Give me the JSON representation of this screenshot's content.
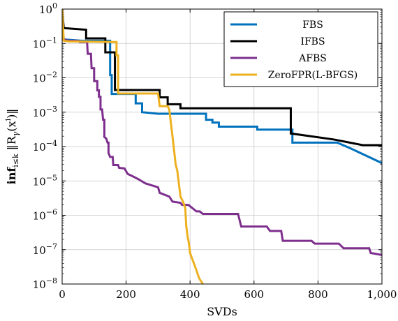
{
  "chart_data": {
    "type": "line",
    "xlabel": "SVDs",
    "ylabel": "inf_{i≤k} ‖R_γ(x^i)‖",
    "ylabel_parts": {
      "pre": "inf",
      "sub": "i≤k",
      "mid": " ‖R",
      "gamma": "γ",
      "open": "(x",
      "sup": "i",
      "close": ")‖"
    },
    "xlim": [
      0,
      1000
    ],
    "ylim": [
      1e-08,
      1
    ],
    "yscale": "log",
    "grid": true,
    "legend_position": "top-right",
    "x_ticks": [
      {
        "value": 0,
        "label": "0"
      },
      {
        "value": 200,
        "label": "200"
      },
      {
        "value": 400,
        "label": "400"
      },
      {
        "value": 600,
        "label": "600"
      },
      {
        "value": 800,
        "label": "800"
      },
      {
        "value": 1000,
        "label": "1,000"
      }
    ],
    "y_ticks": [
      {
        "value": 1,
        "base": "10",
        "exp": "0"
      },
      {
        "value": 0.1,
        "base": "10",
        "exp": "−1"
      },
      {
        "value": 0.01,
        "base": "10",
        "exp": "−2"
      },
      {
        "value": 0.001,
        "base": "10",
        "exp": "−3"
      },
      {
        "value": 0.0001,
        "base": "10",
        "exp": "−4"
      },
      {
        "value": 1e-05,
        "base": "10",
        "exp": "−5"
      },
      {
        "value": 1e-06,
        "base": "10",
        "exp": "−6"
      },
      {
        "value": 1e-07,
        "base": "10",
        "exp": "−7"
      },
      {
        "value": 1e-08,
        "base": "10",
        "exp": "−8"
      }
    ],
    "series": [
      {
        "name": "FBS",
        "color": "#0072bd",
        "points": [
          [
            0,
            1
          ],
          [
            3,
            0.15
          ],
          [
            8,
            0.13
          ],
          [
            60,
            0.12
          ],
          [
            150,
            0.12
          ],
          [
            150,
            0.012
          ],
          [
            155,
            0.012
          ],
          [
            155,
            0.0034
          ],
          [
            195,
            0.0034
          ],
          [
            195,
            0.0034
          ],
          [
            230,
            0.0034
          ],
          [
            230,
            0.0018
          ],
          [
            250,
            0.0018
          ],
          [
            250,
            0.001
          ],
          [
            300,
            0.0009
          ],
          [
            420,
            0.0009
          ],
          [
            420,
            0.0009
          ],
          [
            450,
            0.0009
          ],
          [
            450,
            0.0006
          ],
          [
            470,
            0.0006
          ],
          [
            470,
            0.0005
          ],
          [
            490,
            0.0005
          ],
          [
            490,
            0.00038
          ],
          [
            560,
            0.00038
          ],
          [
            560,
            0.00038
          ],
          [
            610,
            0.00038
          ],
          [
            610,
            0.00031
          ],
          [
            720,
            0.00031
          ],
          [
            720,
            0.00013
          ],
          [
            860,
            0.00013
          ],
          [
            900,
            9e-05
          ],
          [
            1000,
            3.3e-05
          ]
        ]
      },
      {
        "name": "IFBS",
        "color": "#000000",
        "points": [
          [
            0,
            1
          ],
          [
            5,
            0.28
          ],
          [
            75,
            0.25
          ],
          [
            75,
            0.14
          ],
          [
            135,
            0.14
          ],
          [
            135,
            0.055
          ],
          [
            165,
            0.055
          ],
          [
            165,
            0.0044
          ],
          [
            305,
            0.0044
          ],
          [
            305,
            0.0027
          ],
          [
            330,
            0.0027
          ],
          [
            330,
            0.0017
          ],
          [
            370,
            0.0017
          ],
          [
            370,
            0.0013
          ],
          [
            700,
            0.0013
          ],
          [
            700,
            0.0013
          ],
          [
            715,
            0.0013
          ],
          [
            715,
            0.00024
          ],
          [
            760,
            0.00021
          ],
          [
            850,
            0.00016
          ],
          [
            940,
            0.00011
          ],
          [
            1000,
            0.00011
          ]
        ]
      },
      {
        "name": "AFBS",
        "color": "#7e2f8e",
        "points": [
          [
            0,
            1
          ],
          [
            4,
            0.13
          ],
          [
            20,
            0.12
          ],
          [
            50,
            0.12
          ],
          [
            55,
            0.11
          ],
          [
            78,
            0.11
          ],
          [
            80,
            0.05
          ],
          [
            90,
            0.05
          ],
          [
            92,
            0.019
          ],
          [
            100,
            0.019
          ],
          [
            100,
            0.008
          ],
          [
            110,
            0.008
          ],
          [
            110,
            0.0043
          ],
          [
            115,
            0.0043
          ],
          [
            115,
            0.0028
          ],
          [
            120,
            0.0028
          ],
          [
            120,
            0.0012
          ],
          [
            125,
            0.0012
          ],
          [
            128,
            0.0006
          ],
          [
            132,
            0.0006
          ],
          [
            132,
            0.00019
          ],
          [
            138,
            0.00017
          ],
          [
            142,
            0.00013
          ],
          [
            145,
            0.00013
          ],
          [
            145,
            6.5e-05
          ],
          [
            150,
            5e-05
          ],
          [
            158,
            5e-05
          ],
          [
            160,
            2.9e-05
          ],
          [
            175,
            2.9e-05
          ],
          [
            178,
            2.4e-05
          ],
          [
            195,
            2.3e-05
          ],
          [
            205,
            1.6e-05
          ],
          [
            225,
            1.3e-05
          ],
          [
            240,
            1.1e-05
          ],
          [
            260,
            8.5e-06
          ],
          [
            285,
            7.2e-06
          ],
          [
            300,
            6.5e-06
          ],
          [
            305,
            4.5e-06
          ],
          [
            335,
            3.5e-06
          ],
          [
            345,
            2.5e-06
          ],
          [
            370,
            2.3e-06
          ],
          [
            375,
            2e-06
          ],
          [
            395,
            2e-06
          ],
          [
            420,
            1.3e-06
          ],
          [
            430,
            1.3e-06
          ],
          [
            440,
            1.1e-06
          ],
          [
            490,
            1.1e-06
          ],
          [
            550,
            1.1e-06
          ],
          [
            560,
            4.7e-07
          ],
          [
            640,
            4.7e-07
          ],
          [
            650,
            3.5e-07
          ],
          [
            685,
            3.5e-07
          ],
          [
            690,
            1.8e-07
          ],
          [
            750,
            1.8e-07
          ],
          [
            780,
            1.8e-07
          ],
          [
            790,
            1.5e-07
          ],
          [
            865,
            1.5e-07
          ],
          [
            880,
            1.1e-07
          ],
          [
            960,
            1.1e-07
          ],
          [
            965,
            8e-08
          ],
          [
            1000,
            7e-08
          ]
        ]
      },
      {
        "name": "ZeroFPR(L-BFGS)",
        "color": "#edb120",
        "points": [
          [
            0,
            1
          ],
          [
            5,
            0.12
          ],
          [
            20,
            0.115
          ],
          [
            170,
            0.11
          ],
          [
            170,
            0.045
          ],
          [
            175,
            0.045
          ],
          [
            175,
            0.0035
          ],
          [
            300,
            0.0035
          ],
          [
            305,
            0.0015
          ],
          [
            330,
            0.0015
          ],
          [
            335,
            0.0012
          ],
          [
            345,
            0.0002
          ],
          [
            355,
            3e-05
          ],
          [
            360,
            2e-05
          ],
          [
            370,
            3.5e-06
          ],
          [
            378,
            2.5e-06
          ],
          [
            385,
            1.6e-06
          ],
          [
            388,
            5e-07
          ],
          [
            392,
            2.5e-07
          ],
          [
            395,
            1.8e-07
          ],
          [
            398,
            1.2e-07
          ],
          [
            400,
            8e-08
          ],
          [
            408,
            5e-08
          ],
          [
            412,
            4e-08
          ],
          [
            420,
            2.5e-08
          ],
          [
            428,
            1.5e-08
          ],
          [
            432,
            1.3e-08
          ],
          [
            440,
            1e-08
          ]
        ]
      }
    ]
  }
}
